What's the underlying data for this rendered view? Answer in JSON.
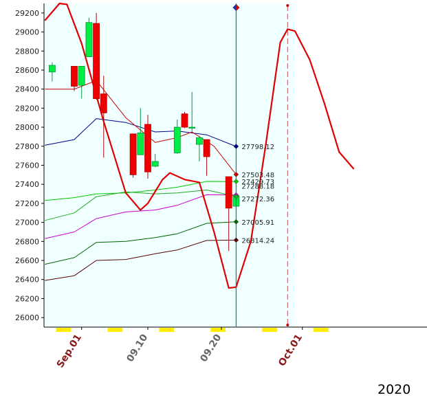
{
  "chart_data": {
    "type": "candlestick",
    "title": "",
    "xlabel": "",
    "ylabel": "",
    "year_label": "2020",
    "x_tick_labels": [
      {
        "label": "Sep.01",
        "date": "2020-09-01",
        "color": "#8b1a1a"
      },
      {
        "label": "09.10",
        "date": "2020-09-10",
        "color": "#666666"
      },
      {
        "label": "09.20",
        "date": "2020-09-20",
        "color": "#666666"
      },
      {
        "label": "Oct.01",
        "date": "2020-10-01",
        "color": "#8b1a1a"
      }
    ],
    "ylim": [
      25900,
      29300
    ],
    "y_ticks": [
      26000,
      26200,
      26400,
      26600,
      26800,
      27000,
      27200,
      27400,
      27600,
      27800,
      28000,
      28200,
      28400,
      28600,
      28800,
      29000,
      29200
    ],
    "y_tick_labels": [
      "26000",
      "26200",
      "26400",
      "26600",
      "26800",
      "27000",
      "27200",
      "27400",
      "27600",
      "27800",
      "28000",
      "28200",
      "28400",
      "28600",
      "28800",
      "29000",
      "29200"
    ],
    "grid": false,
    "candles": [
      {
        "date": "2020-08-28",
        "open": 28580,
        "high": 28680,
        "low": 28480,
        "close": 28650
      },
      {
        "date": "2020-08-31",
        "open": 28640,
        "high": 28640,
        "low": 28380,
        "close": 28430
      },
      {
        "date": "2020-09-01",
        "open": 28440,
        "high": 28640,
        "low": 28300,
        "close": 28640
      },
      {
        "date": "2020-09-02",
        "open": 28740,
        "high": 29150,
        "low": 28740,
        "close": 29100
      },
      {
        "date": "2020-09-03",
        "open": 29090,
        "high": 29200,
        "low": 28290,
        "close": 28300
      },
      {
        "date": "2020-09-04",
        "open": 28350,
        "high": 28540,
        "low": 27680,
        "close": 28150
      },
      {
        "date": "2020-09-08",
        "open": 27930,
        "high": 27930,
        "low": 27470,
        "close": 27500
      },
      {
        "date": "2020-09-09",
        "open": 27710,
        "high": 28200,
        "low": 27710,
        "close": 27940
      },
      {
        "date": "2020-09-10",
        "open": 28030,
        "high": 28130,
        "low": 27460,
        "close": 27530
      },
      {
        "date": "2020-09-11",
        "open": 27590,
        "high": 27720,
        "low": 27580,
        "close": 27640
      },
      {
        "date": "2020-09-14",
        "open": 27730,
        "high": 28080,
        "low": 27720,
        "close": 28000
      },
      {
        "date": "2020-09-15",
        "open": 28140,
        "high": 28160,
        "low": 27990,
        "close": 28000
      },
      {
        "date": "2020-09-16",
        "open": 28000,
        "high": 28370,
        "low": 27950,
        "close": 28000
      },
      {
        "date": "2020-09-17",
        "open": 27820,
        "high": 27910,
        "low": 27640,
        "close": 27890
      },
      {
        "date": "2020-09-18",
        "open": 27870,
        "high": 27870,
        "low": 27490,
        "close": 27690
      },
      {
        "date": "2020-09-21",
        "open": 27480,
        "high": 27480,
        "low": 26700,
        "close": 27150
      },
      {
        "date": "2020-09-22",
        "open": 27170,
        "high": 27300,
        "low": 27150,
        "close": 27280
      }
    ],
    "series": [
      {
        "color": "#00008b",
        "x": [
          "2020-08-27",
          "2020-08-31",
          "2020-09-03",
          "2020-09-07",
          "2020-09-11",
          "2020-09-14",
          "2020-09-18",
          "2020-09-22"
        ],
        "values": [
          27810,
          27870,
          28090,
          28050,
          27950,
          27960,
          27920,
          27798.12
        ]
      },
      {
        "color": "#cc0000",
        "x": [
          "2020-08-27",
          "2020-08-31",
          "2020-09-03",
          "2020-09-07",
          "2020-09-11",
          "2020-09-14",
          "2020-09-16",
          "2020-09-19",
          "2020-09-22"
        ],
        "values": [
          28400,
          28400,
          28490,
          28100,
          27840,
          27890,
          27950,
          27800,
          27503.48
        ]
      },
      {
        "color": "#00cc00",
        "x": [
          "2020-08-27",
          "2020-08-31",
          "2020-09-03",
          "2020-09-07",
          "2020-09-11",
          "2020-09-14",
          "2020-09-18",
          "2020-09-22"
        ],
        "values": [
          27230,
          27260,
          27300,
          27310,
          27340,
          27370,
          27430,
          27429.73
        ]
      },
      {
        "color": "#cc00cc",
        "x": [
          "2020-08-27",
          "2020-08-31",
          "2020-09-03",
          "2020-09-07",
          "2020-09-11",
          "2020-09-14",
          "2020-09-18",
          "2020-09-22"
        ],
        "values": [
          26830,
          26900,
          27040,
          27110,
          27130,
          27180,
          27290,
          27288.18
        ]
      },
      {
        "color": "#22aa22",
        "x": [
          "2020-08-27",
          "2020-08-31",
          "2020-09-03",
          "2020-09-07",
          "2020-09-11",
          "2020-09-14",
          "2020-09-18",
          "2020-09-22"
        ],
        "values": [
          27020,
          27100,
          27270,
          27320,
          27300,
          27310,
          27340,
          27272.36
        ]
      },
      {
        "color": "#006400",
        "x": [
          "2020-08-27",
          "2020-08-31",
          "2020-09-03",
          "2020-09-07",
          "2020-09-11",
          "2020-09-14",
          "2020-09-18",
          "2020-09-22"
        ],
        "values": [
          26560,
          26630,
          26790,
          26800,
          26840,
          26880,
          26990,
          27005.91
        ]
      },
      {
        "color": "#5a0000",
        "x": [
          "2020-08-27",
          "2020-08-31",
          "2020-09-03",
          "2020-09-07",
          "2020-09-11",
          "2020-09-14",
          "2020-09-18",
          "2020-09-22"
        ],
        "values": [
          26390,
          26440,
          26600,
          26610,
          26670,
          26710,
          26810,
          26814.24
        ]
      },
      {
        "color": "#e00000",
        "x": [
          "2020-08-27",
          "2020-08-29",
          "2020-08-30",
          "2020-09-01",
          "2020-09-04",
          "2020-09-07",
          "2020-09-09",
          "2020-09-10",
          "2020-09-12",
          "2020-09-13",
          "2020-09-15",
          "2020-09-17",
          "2020-09-19",
          "2020-09-21",
          "2020-09-22",
          "2020-09-24",
          "2020-09-26",
          "2020-09-28",
          "2020-09-29",
          "2020-09-30",
          "2020-10-02",
          "2020-10-04",
          "2020-10-06",
          "2020-10-08"
        ],
        "values": [
          29120,
          29300,
          29290,
          28880,
          28060,
          27310,
          27130,
          27200,
          27450,
          27520,
          27450,
          27420,
          26900,
          26310,
          26320,
          26800,
          27800,
          28890,
          29030,
          29010,
          28710,
          28250,
          27740,
          27560
        ]
      }
    ],
    "value_labels": [
      "27798.12",
      "27503.48",
      "27429.73",
      "27288.18",
      "27272.36",
      "27005.91",
      "26814.24"
    ],
    "colors": {
      "plot_background": "#f0ffff",
      "up_candle": "#00ee44",
      "down_candle": "#ee0000",
      "weekend_marker": "#ffee00",
      "current_line": "#008b8b",
      "future_line": "#cc0000"
    },
    "current_date": "2020-09-22",
    "future_marker_date": "2020-09-29",
    "weekend_marker_dates": [
      "2020-08-29",
      "2020-08-30",
      "2020-09-05",
      "2020-09-06",
      "2020-09-12",
      "2020-09-13",
      "2020-09-19",
      "2020-09-20",
      "2020-09-26",
      "2020-09-27",
      "2020-10-03",
      "2020-10-04"
    ]
  }
}
